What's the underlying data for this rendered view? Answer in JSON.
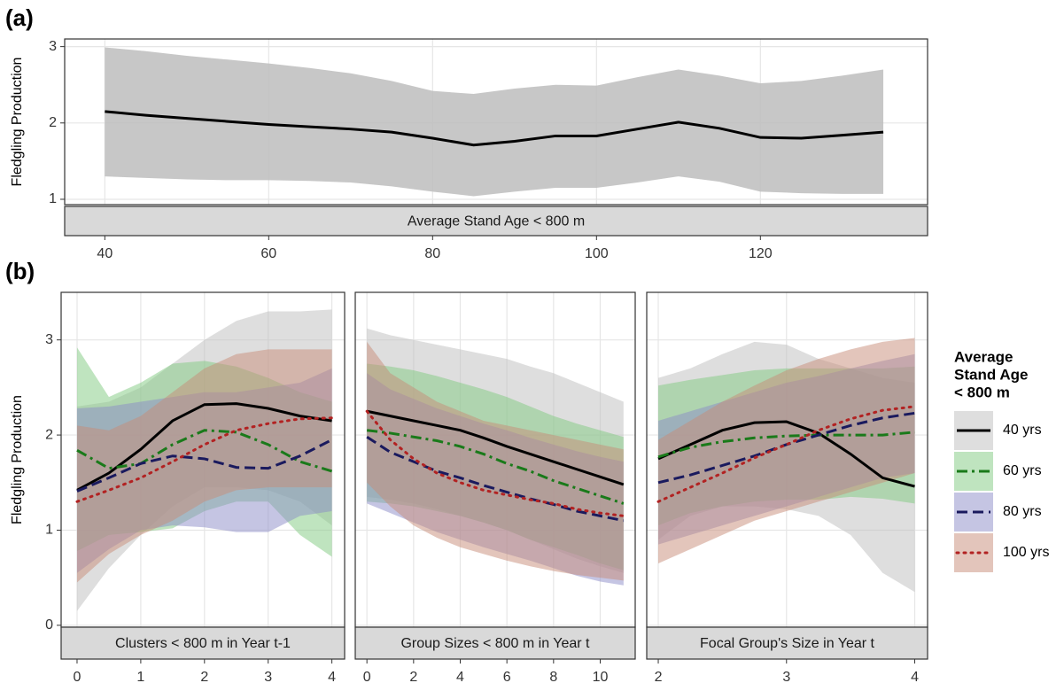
{
  "chart_data": [
    {
      "type": "line",
      "panel_label": "(a)",
      "ylabel": "Fledgling Production",
      "strip": "Average Stand Age < 800 m",
      "x": [
        40,
        45,
        50,
        55,
        60,
        65,
        70,
        75,
        80,
        85,
        90,
        95,
        100,
        105,
        110,
        115,
        120,
        125,
        130,
        135
      ],
      "xlim": [
        35.1,
        140.4
      ],
      "ylim": [
        0.93,
        3.1
      ],
      "xticks": [
        40,
        60,
        80,
        100,
        120
      ],
      "yticks": [
        1,
        2,
        3
      ],
      "series": [
        {
          "color": "#000000",
          "band_color": "#bdbdbd",
          "linetype": "solid",
          "values": [
            2.15,
            2.1,
            2.06,
            2.02,
            1.98,
            1.95,
            1.92,
            1.88,
            1.8,
            1.71,
            1.76,
            1.83,
            1.83,
            1.92,
            2.01,
            1.93,
            1.81,
            1.8,
            1.84,
            1.88
          ],
          "upper": [
            2.99,
            2.94,
            2.88,
            2.83,
            2.78,
            2.72,
            2.65,
            2.55,
            2.42,
            2.38,
            2.45,
            2.5,
            2.49,
            2.6,
            2.7,
            2.62,
            2.52,
            2.55,
            2.62,
            2.7
          ],
          "lower": [
            1.3,
            1.28,
            1.26,
            1.25,
            1.25,
            1.24,
            1.22,
            1.17,
            1.1,
            1.04,
            1.1,
            1.15,
            1.15,
            1.22,
            1.3,
            1.23,
            1.1,
            1.08,
            1.07,
            1.07
          ]
        }
      ]
    },
    {
      "type": "line",
      "panel_label": "(b)",
      "ylabel": "Fledgling Production",
      "strip": "Clusters < 800 m in Year t-1",
      "x": [
        0,
        0.5,
        1,
        1.5,
        2,
        2.5,
        3,
        3.5,
        4
      ],
      "xlim": [
        -0.25,
        4.2
      ],
      "ylim": [
        -0.02,
        3.5
      ],
      "xticks": [
        0,
        1,
        2,
        3,
        4
      ],
      "yticks": [
        0,
        1,
        2,
        3
      ],
      "series": [
        {
          "values": [
            1.42,
            1.6,
            1.85,
            2.15,
            2.32,
            2.33,
            2.28,
            2.2,
            2.15
          ],
          "upper": [
            2.3,
            2.35,
            2.5,
            2.75,
            3.0,
            3.2,
            3.3,
            3.3,
            3.32
          ],
          "lower": [
            0.15,
            0.6,
            0.95,
            1.25,
            1.45,
            1.45,
            1.42,
            1.3,
            1.05
          ]
        },
        {
          "values": [
            1.84,
            1.65,
            1.7,
            1.9,
            2.05,
            2.03,
            1.9,
            1.72,
            1.62
          ],
          "upper": [
            2.92,
            2.4,
            2.55,
            2.75,
            2.78,
            2.72,
            2.6,
            2.45,
            2.35
          ],
          "lower": [
            0.78,
            0.95,
            0.98,
            1.02,
            1.2,
            1.3,
            1.3,
            0.95,
            0.72
          ]
        },
        {
          "values": [
            1.41,
            1.55,
            1.7,
            1.78,
            1.75,
            1.66,
            1.65,
            1.78,
            1.95
          ],
          "upper": [
            2.28,
            2.3,
            2.35,
            2.4,
            2.45,
            2.45,
            2.5,
            2.55,
            2.7
          ],
          "lower": [
            0.55,
            0.8,
            1.0,
            1.05,
            1.03,
            0.98,
            0.98,
            1.15,
            1.2
          ]
        },
        {
          "values": [
            1.3,
            1.42,
            1.55,
            1.72,
            1.9,
            2.05,
            2.12,
            2.17,
            2.18
          ],
          "upper": [
            2.1,
            2.05,
            2.2,
            2.45,
            2.7,
            2.85,
            2.9,
            2.9,
            2.9
          ],
          "lower": [
            0.45,
            0.75,
            0.95,
            1.1,
            1.3,
            1.42,
            1.45,
            1.45,
            1.45
          ]
        }
      ]
    },
    {
      "type": "line",
      "strip": "Group Sizes < 800 m in Year t",
      "x": [
        0,
        1,
        2,
        3,
        4,
        5,
        6,
        7,
        8,
        9,
        10,
        11
      ],
      "xlim": [
        -0.5,
        11.5
      ],
      "ylim": [
        -0.02,
        3.5
      ],
      "xticks": [
        0,
        2,
        4,
        6,
        8,
        10
      ],
      "yticks": [
        0,
        1,
        2,
        3
      ],
      "series": [
        {
          "values": [
            2.25,
            2.2,
            2.15,
            2.1,
            2.05,
            1.97,
            1.88,
            1.8,
            1.72,
            1.64,
            1.56,
            1.48
          ],
          "upper": [
            3.12,
            3.05,
            3.0,
            2.95,
            2.9,
            2.85,
            2.8,
            2.72,
            2.65,
            2.55,
            2.45,
            2.35
          ],
          "lower": [
            1.35,
            1.32,
            1.28,
            1.22,
            1.15,
            1.08,
            1.0,
            0.9,
            0.8,
            0.7,
            0.62,
            0.55
          ]
        },
        {
          "values": [
            2.05,
            2.02,
            1.98,
            1.94,
            1.88,
            1.8,
            1.7,
            1.62,
            1.52,
            1.44,
            1.36,
            1.28
          ],
          "upper": [
            2.75,
            2.72,
            2.68,
            2.62,
            2.55,
            2.48,
            2.4,
            2.3,
            2.2,
            2.12,
            2.05,
            1.98
          ],
          "lower": [
            1.3,
            1.28,
            1.25,
            1.2,
            1.15,
            1.08,
            1.0,
            0.9,
            0.82,
            0.74,
            0.65,
            0.58
          ]
        },
        {
          "values": [
            1.98,
            1.82,
            1.72,
            1.62,
            1.55,
            1.47,
            1.4,
            1.33,
            1.27,
            1.2,
            1.15,
            1.1
          ],
          "upper": [
            2.65,
            2.48,
            2.38,
            2.28,
            2.2,
            2.12,
            2.05,
            1.97,
            1.9,
            1.83,
            1.77,
            1.72
          ],
          "lower": [
            1.28,
            1.18,
            1.08,
            0.98,
            0.9,
            0.82,
            0.75,
            0.68,
            0.6,
            0.52,
            0.46,
            0.42
          ]
        },
        {
          "values": [
            2.25,
            1.95,
            1.75,
            1.6,
            1.5,
            1.42,
            1.37,
            1.32,
            1.28,
            1.22,
            1.18,
            1.15
          ],
          "upper": [
            2.98,
            2.65,
            2.5,
            2.35,
            2.25,
            2.15,
            2.1,
            2.05,
            2.0,
            1.95,
            1.9,
            1.85
          ],
          "lower": [
            1.5,
            1.25,
            1.05,
            0.92,
            0.82,
            0.75,
            0.68,
            0.62,
            0.57,
            0.53,
            0.5,
            0.47
          ]
        }
      ]
    },
    {
      "type": "line",
      "strip": "Focal Group's Size in Year t",
      "x": [
        2,
        2.25,
        2.5,
        2.75,
        3,
        3.25,
        3.5,
        3.75,
        4
      ],
      "xlim": [
        1.91,
        4.1
      ],
      "ylim": [
        -0.02,
        3.5
      ],
      "xticks": [
        2,
        3,
        4
      ],
      "yticks": [
        0,
        1,
        2,
        3
      ],
      "series": [
        {
          "values": [
            1.75,
            1.9,
            2.05,
            2.13,
            2.14,
            2.02,
            1.8,
            1.55,
            1.46
          ],
          "upper": [
            2.6,
            2.7,
            2.85,
            2.98,
            2.95,
            2.8,
            2.7,
            2.6,
            2.55
          ],
          "lower": [
            0.9,
            1.15,
            1.25,
            1.25,
            1.22,
            1.15,
            0.95,
            0.55,
            0.35
          ]
        },
        {
          "values": [
            1.77,
            1.87,
            1.93,
            1.97,
            1.99,
            2.0,
            2.0,
            2.0,
            2.03
          ],
          "upper": [
            2.52,
            2.58,
            2.63,
            2.68,
            2.7,
            2.7,
            2.7,
            2.7,
            2.72
          ],
          "lower": [
            1.05,
            1.18,
            1.25,
            1.3,
            1.32,
            1.32,
            1.35,
            1.33,
            1.28
          ]
        },
        {
          "values": [
            1.5,
            1.58,
            1.68,
            1.78,
            1.9,
            2.0,
            2.1,
            2.18,
            2.23
          ],
          "upper": [
            2.15,
            2.25,
            2.35,
            2.45,
            2.55,
            2.62,
            2.7,
            2.78,
            2.85
          ],
          "lower": [
            0.85,
            0.95,
            1.05,
            1.15,
            1.25,
            1.35,
            1.45,
            1.55,
            1.6
          ]
        },
        {
          "values": [
            1.3,
            1.45,
            1.6,
            1.76,
            1.9,
            2.05,
            2.17,
            2.26,
            2.3
          ],
          "upper": [
            1.95,
            2.15,
            2.35,
            2.52,
            2.68,
            2.8,
            2.9,
            2.98,
            3.02
          ],
          "lower": [
            0.65,
            0.8,
            0.95,
            1.1,
            1.2,
            1.3,
            1.4,
            1.5,
            1.6
          ]
        }
      ]
    }
  ],
  "legend": {
    "title": [
      "Average",
      "Stand Age",
      "< 800 m"
    ],
    "items": [
      {
        "name": "40 yrs",
        "color": "#000000",
        "band_color": "#bdbdbd",
        "linetype": "solid"
      },
      {
        "name": "60 yrs",
        "color": "#1a7a1a",
        "band_color": "#7fc97f",
        "linetype": "dashdot"
      },
      {
        "name": "80 yrs",
        "color": "#1a1a5e",
        "band_color": "#8c8cc8",
        "linetype": "dashed"
      },
      {
        "name": "100 yrs",
        "color": "#b22222",
        "band_color": "#c88c78",
        "linetype": "dotted"
      }
    ]
  }
}
